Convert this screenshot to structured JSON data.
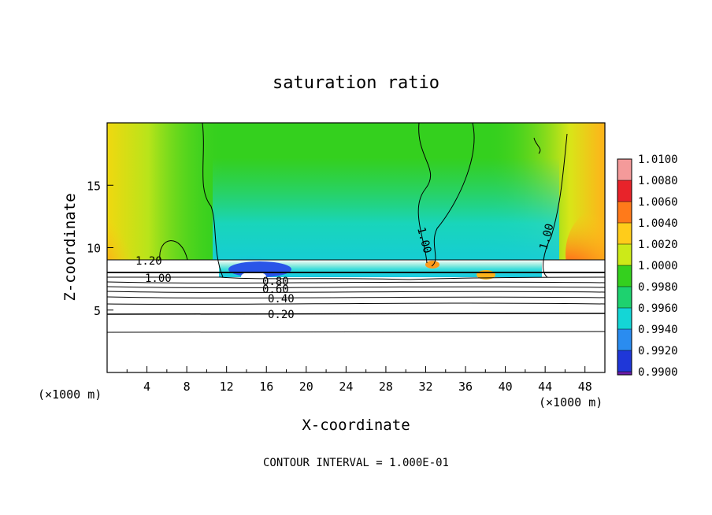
{
  "chart_data": {
    "type": "heatmap",
    "title": "saturation ratio",
    "xlabel": "X-coordinate",
    "ylabel": "Z-coordinate",
    "x_unit": "(×1000 m)",
    "x_unit_right": "(×1000 m)",
    "xlim": [
      0,
      50
    ],
    "ylim": [
      0,
      20
    ],
    "x_ticks": [
      4,
      8,
      12,
      16,
      20,
      24,
      28,
      32,
      36,
      40,
      44,
      48
    ],
    "y_ticks": [
      5,
      10,
      15
    ],
    "colorbar": {
      "levels": [
        "1.0100",
        "1.0080",
        "1.0060",
        "1.0040",
        "1.0020",
        "1.0000",
        "0.9980",
        "0.9960",
        "0.9940",
        "0.9920",
        "0.9900"
      ],
      "colors": [
        "#f49a9a",
        "#e8232a",
        "#ff7a1a",
        "#ffcc1a",
        "#ccea18",
        "#34d01e",
        "#1ed26f",
        "#14d6d6",
        "#2a8cf0",
        "#1f37d8",
        "#6a1ea8"
      ]
    },
    "contour_labels": [
      "1.20",
      "1.00",
      "0.80",
      "0.60",
      "0.40",
      "0.20",
      "1.00",
      "1.00"
    ],
    "contour_interval_text": "CONTOUR INTERVAL = 1.000E-01"
  }
}
